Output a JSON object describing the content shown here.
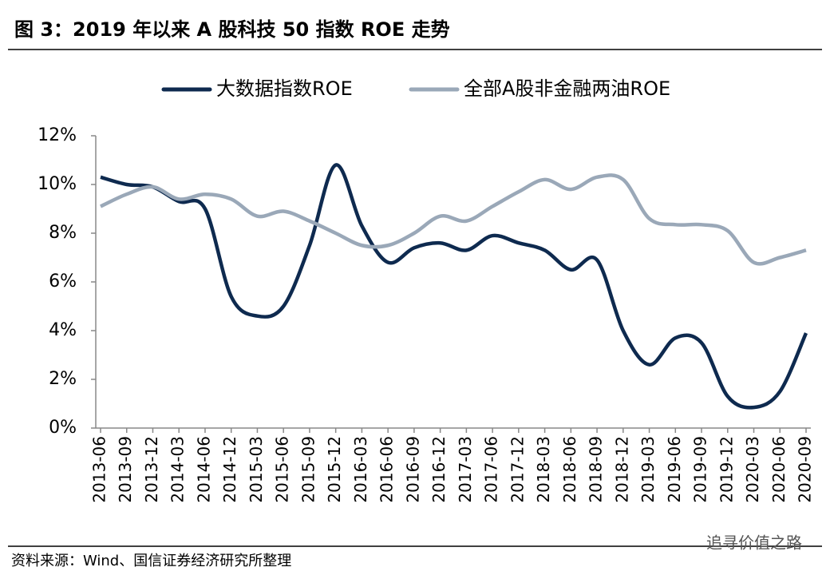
{
  "chart_data": {
    "type": "line",
    "title": "图 3：2019 年以来 A 股科技 50 指数 ROE 走势",
    "source": "资料来源：Wind、国信证券经济研究所整理",
    "watermark": "追寻价值之路",
    "categories": [
      "2013-06",
      "2013-09",
      "2013-12",
      "2014-03",
      "2014-06",
      "2014-12",
      "2015-03",
      "2015-06",
      "2015-09",
      "2015-12",
      "2016-03",
      "2016-06",
      "2016-09",
      "2016-12",
      "2017-03",
      "2017-06",
      "2017-12",
      "2018-03",
      "2018-06",
      "2018-09",
      "2018-12",
      "2019-03",
      "2019-06",
      "2019-09",
      "2019-12",
      "2020-03",
      "2020-06",
      "2020-09"
    ],
    "series": [
      {
        "name": "大数据指数ROE",
        "color": "#0e2a4f",
        "values": [
          10.3,
          10.0,
          9.9,
          9.3,
          9.0,
          5.4,
          4.6,
          5.0,
          7.5,
          10.8,
          8.3,
          6.8,
          7.4,
          7.6,
          7.3,
          7.9,
          7.6,
          7.3,
          6.5,
          6.9,
          4.0,
          2.6,
          3.7,
          3.5,
          1.3,
          0.85,
          1.5,
          3.9
        ]
      },
      {
        "name": "全部A股非金融两油ROE",
        "color": "#9aa8b8",
        "values": [
          9.1,
          9.6,
          9.9,
          9.4,
          9.6,
          9.4,
          8.7,
          8.9,
          8.5,
          8.0,
          7.5,
          7.5,
          8.0,
          8.7,
          8.5,
          9.1,
          9.7,
          10.2,
          9.8,
          10.3,
          10.2,
          8.6,
          8.35,
          8.35,
          8.1,
          6.8,
          7.0,
          7.3
        ]
      }
    ],
    "ylim": [
      0,
      12
    ],
    "yticks": [
      {
        "value": 0,
        "label": "0%"
      },
      {
        "value": 2,
        "label": "2%"
      },
      {
        "value": 4,
        "label": "4%"
      },
      {
        "value": 6,
        "label": "6%"
      },
      {
        "value": 8,
        "label": "8%"
      },
      {
        "value": 10,
        "label": "10%"
      },
      {
        "value": 12,
        "label": "12%"
      }
    ],
    "legend": "top"
  }
}
